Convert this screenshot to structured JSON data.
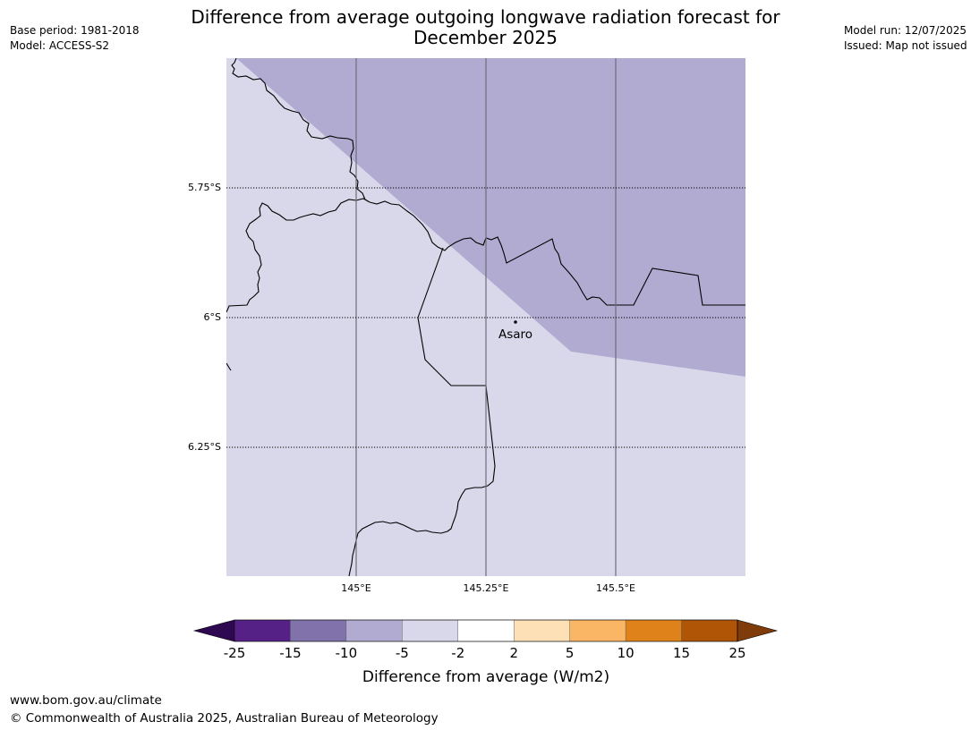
{
  "header": {
    "base_period": "Base period: 1981-2018",
    "model": "Model: ACCESS-S2",
    "title_line1": "Difference from average outgoing longwave radiation forecast for",
    "title_line2": "December 2025",
    "model_run": "Model run: 12/07/2025",
    "issued": "Issued: Map not issued"
  },
  "map": {
    "lat_labels": [
      "5.75°S",
      "6°S",
      "6.25°S"
    ],
    "lon_labels": [
      "145°E",
      "145.25°E",
      "145.5°E"
    ],
    "place": {
      "name": "Asaro",
      "lat": -6.01,
      "lon": 145.31
    },
    "region_colors": {
      "negative_5_to_10": "#b1abd2",
      "negative_2_to_5": "#d8d8ea"
    }
  },
  "colorbar": {
    "label": "Difference from average (W/m2)",
    "ticks": [
      "-25",
      "-15",
      "-10",
      "-5",
      "-2",
      "2",
      "5",
      "10",
      "15",
      "25"
    ],
    "colors": [
      "#562186",
      "#8172ac",
      "#b1abd2",
      "#d8d8ea",
      "#ffffff",
      "#fde0b5",
      "#fbb665",
      "#e0821a",
      "#b05505"
    ],
    "under_color": "#2e0952",
    "over_color": "#7f3c0a"
  },
  "footer": {
    "website": "www.bom.gov.au/climate",
    "copyright": "© Commonwealth of Australia 2025, Australian Bureau of Meteorology"
  }
}
